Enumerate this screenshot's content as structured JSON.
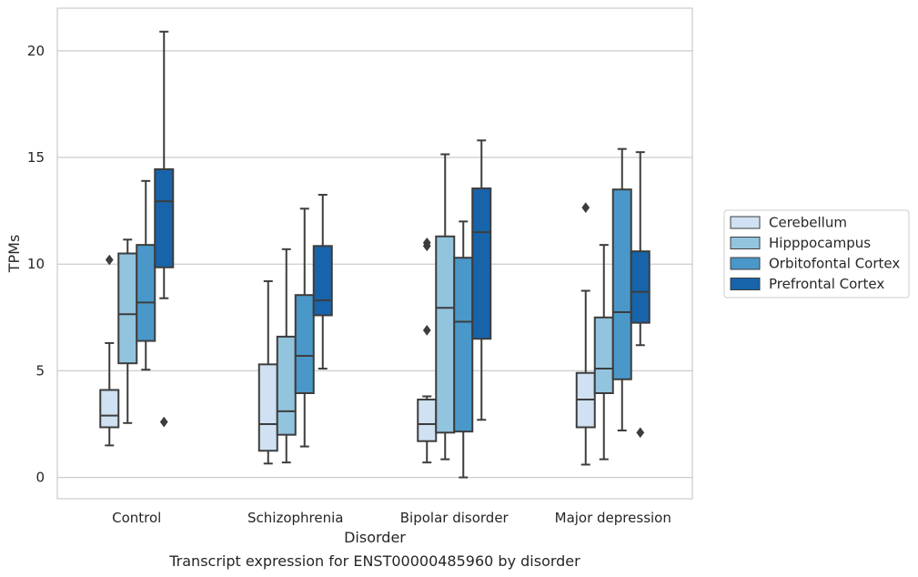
{
  "chart_data": {
    "type": "box",
    "title": "",
    "caption": "Transcript expression for ENST00000485960 by disorder",
    "xlabel": "Disorder",
    "ylabel": "TPMs",
    "ylim": [
      -1,
      22
    ],
    "yticks": [
      0,
      5,
      10,
      15,
      20
    ],
    "grid": "horizontal",
    "legend_position": "right",
    "categories": [
      "Control",
      "Schizophrenia",
      "Bipolar disorder",
      "Major depression"
    ],
    "series": [
      {
        "name": "Cerebellum",
        "color": "#cfe1f2",
        "boxes": [
          {
            "whisker_low": 1.5,
            "q1": 2.35,
            "median": 2.9,
            "q3": 4.1,
            "whisker_high": 6.3,
            "outliers": [
              10.2
            ]
          },
          {
            "whisker_low": 0.65,
            "q1": 1.25,
            "median": 2.5,
            "q3": 5.3,
            "whisker_high": 9.2,
            "outliers": []
          },
          {
            "whisker_low": 0.7,
            "q1": 1.7,
            "median": 2.5,
            "q3": 3.65,
            "whisker_high": 3.8,
            "outliers": [
              6.9,
              10.85,
              11.0
            ]
          },
          {
            "whisker_low": 0.6,
            "q1": 2.35,
            "median": 3.65,
            "q3": 4.9,
            "whisker_high": 8.75,
            "outliers": [
              12.65
            ]
          }
        ]
      },
      {
        "name": "Hipppocampus",
        "color": "#93c4de",
        "boxes": [
          {
            "whisker_low": 2.55,
            "q1": 5.35,
            "median": 7.65,
            "q3": 10.5,
            "whisker_high": 11.15,
            "outliers": []
          },
          {
            "whisker_low": 0.7,
            "q1": 2.0,
            "median": 3.1,
            "q3": 6.6,
            "whisker_high": 10.7,
            "outliers": []
          },
          {
            "whisker_low": 0.85,
            "q1": 2.1,
            "median": 7.95,
            "q3": 11.3,
            "whisker_high": 15.15,
            "outliers": []
          },
          {
            "whisker_low": 0.85,
            "q1": 3.95,
            "median": 5.1,
            "q3": 7.5,
            "whisker_high": 10.9,
            "outliers": []
          }
        ]
      },
      {
        "name": "Orbitofontal Cortex",
        "color": "#4a98c9",
        "boxes": [
          {
            "whisker_low": 5.05,
            "q1": 6.4,
            "median": 8.2,
            "q3": 10.9,
            "whisker_high": 13.9,
            "outliers": []
          },
          {
            "whisker_low": 1.45,
            "q1": 3.95,
            "median": 5.7,
            "q3": 8.55,
            "whisker_high": 12.6,
            "outliers": []
          },
          {
            "whisker_low": 0.0,
            "q1": 2.15,
            "median": 7.3,
            "q3": 10.3,
            "whisker_high": 12.0,
            "outliers": []
          },
          {
            "whisker_low": 2.2,
            "q1": 4.6,
            "median": 7.75,
            "q3": 13.5,
            "whisker_high": 15.4,
            "outliers": []
          }
        ]
      },
      {
        "name": "Prefrontal Cortex",
        "color": "#1764ab",
        "boxes": [
          {
            "whisker_low": 8.4,
            "q1": 9.85,
            "median": 12.95,
            "q3": 14.45,
            "whisker_high": 20.9,
            "outliers": [
              2.6
            ]
          },
          {
            "whisker_low": 5.1,
            "q1": 7.6,
            "median": 8.3,
            "q3": 10.85,
            "whisker_high": 13.25,
            "outliers": []
          },
          {
            "whisker_low": 2.7,
            "q1": 6.5,
            "median": 11.5,
            "q3": 13.55,
            "whisker_high": 15.8,
            "outliers": []
          },
          {
            "whisker_low": 6.2,
            "q1": 7.25,
            "median": 8.7,
            "q3": 10.6,
            "whisker_high": 15.25,
            "outliers": [
              2.1
            ]
          }
        ]
      }
    ]
  }
}
